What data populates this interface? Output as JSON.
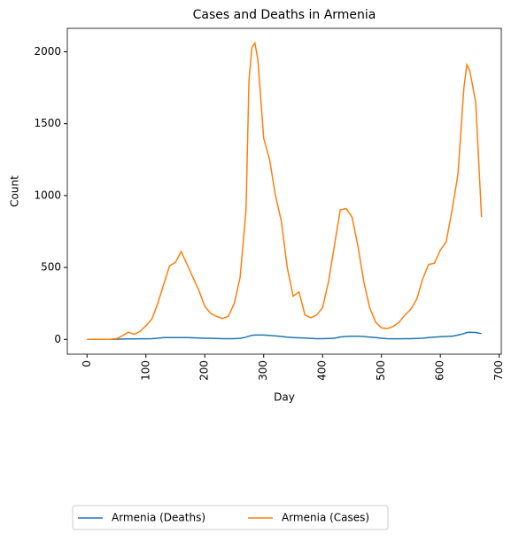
{
  "chart_data": {
    "type": "line",
    "title": "Cases and Deaths in Armenia",
    "x_label": "Day",
    "y_label": "Count",
    "x": [
      0,
      10,
      20,
      30,
      40,
      50,
      60,
      70,
      80,
      90,
      100,
      110,
      120,
      130,
      140,
      150,
      160,
      170,
      180,
      190,
      200,
      210,
      220,
      230,
      240,
      250,
      260,
      270,
      275,
      280,
      285,
      290,
      300,
      310,
      320,
      330,
      340,
      350,
      360,
      370,
      380,
      390,
      400,
      410,
      420,
      430,
      440,
      450,
      460,
      470,
      480,
      490,
      500,
      510,
      520,
      530,
      540,
      550,
      560,
      570,
      580,
      590,
      600,
      610,
      620,
      630,
      640,
      645,
      650,
      660,
      670
    ],
    "series": [
      {
        "name": "Armenia (Deaths)",
        "color": "#1f77b4",
        "values": [
          0,
          0,
          0,
          0,
          0,
          1,
          2,
          3,
          3,
          4,
          4,
          5,
          8,
          12,
          13,
          13,
          13,
          12,
          11,
          9,
          8,
          7,
          6,
          5,
          5,
          5,
          7,
          15,
          22,
          28,
          30,
          30,
          30,
          27,
          24,
          20,
          15,
          13,
          11,
          9,
          7,
          5,
          5,
          6,
          8,
          17,
          20,
          22,
          22,
          20,
          16,
          12,
          8,
          5,
          4,
          4,
          5,
          5,
          6,
          8,
          12,
          15,
          18,
          20,
          22,
          30,
          40,
          48,
          50,
          48,
          40
        ]
      },
      {
        "name": "Armenia (Cases)",
        "color": "#ff7f0e",
        "values": [
          0,
          0,
          0,
          0,
          0,
          5,
          25,
          50,
          35,
          55,
          95,
          140,
          250,
          380,
          510,
          535,
          610,
          520,
          430,
          340,
          230,
          180,
          160,
          145,
          160,
          250,
          430,
          900,
          1800,
          2030,
          2060,
          1950,
          1400,
          1250,
          1000,
          820,
          500,
          300,
          330,
          170,
          150,
          170,
          220,
          400,
          650,
          900,
          910,
          850,
          650,
          400,
          220,
          120,
          80,
          75,
          90,
          120,
          170,
          210,
          280,
          420,
          520,
          530,
          620,
          680,
          900,
          1150,
          1750,
          1910,
          1870,
          1650,
          850
        ]
      }
    ],
    "xlim": [
      -33.5,
      703.5
    ],
    "xticks": [
      0,
      100,
      200,
      300,
      400,
      500,
      600,
      700
    ],
    "ylim": [
      -103,
      2163
    ],
    "yticks": [
      0,
      500,
      1000,
      1500,
      2000
    ],
    "legend": "lower left"
  }
}
